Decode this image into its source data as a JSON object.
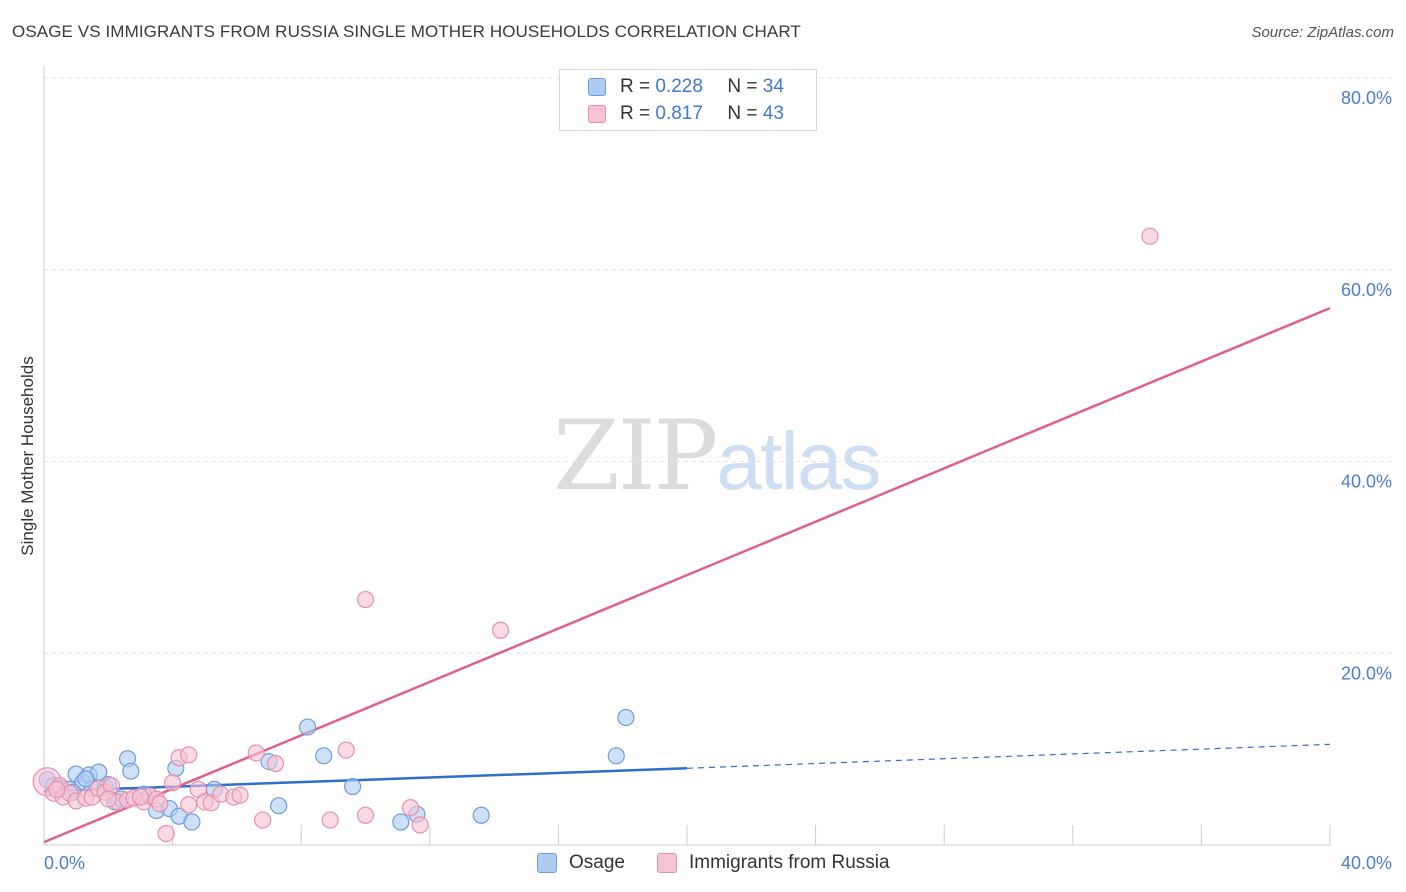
{
  "title": "OSAGE VS IMMIGRANTS FROM RUSSIA SINGLE MOTHER HOUSEHOLDS CORRELATION CHART",
  "source": "Source: ZipAtlas.com",
  "watermark": {
    "zip": "ZIP",
    "atlas": "atlas"
  },
  "legend": {
    "rows": [
      {
        "r_label": "R = ",
        "r_value": "0.228",
        "n_label": "N = ",
        "n_value": "34"
      },
      {
        "r_label": "R = ",
        "r_value": "0.817",
        "n_label": "N = ",
        "n_value": "43"
      }
    ]
  },
  "colors": {
    "osage_fill": "#aecbf2",
    "osage_stroke": "#6e9de0",
    "osage_line": "#2f6fc9",
    "russia_fill": "#f7c3d3",
    "russia_stroke": "#e98fae",
    "russia_line": "#e0608a",
    "grid": "#e4e4e4",
    "tick_text": "#4a7fd0"
  },
  "chart_data": {
    "type": "scatter",
    "title": "OSAGE VS IMMIGRANTS FROM RUSSIA SINGLE MOTHER HOUSEHOLDS CORRELATION CHART",
    "xlabel": "",
    "ylabel": "Single Mother Households",
    "xlim": [
      0,
      40
    ],
    "ylim": [
      0,
      80
    ],
    "y_ticks": [
      {
        "value": 20,
        "label": "20.0%"
      },
      {
        "value": 40,
        "label": "40.0%"
      },
      {
        "value": 60,
        "label": "60.0%"
      },
      {
        "value": 80,
        "label": "80.0%"
      }
    ],
    "x_tick_labels": [
      {
        "value": 0,
        "label": "0.0%"
      },
      {
        "value": 40,
        "label": "40.0%"
      }
    ],
    "series": [
      {
        "name": "Osage",
        "r": 0.228,
        "n": 34,
        "points": [
          [
            0.1,
            6.8
          ],
          [
            0.3,
            6.2
          ],
          [
            0.5,
            6.0
          ],
          [
            0.8,
            5.8
          ],
          [
            1.0,
            7.4
          ],
          [
            1.2,
            6.5
          ],
          [
            1.4,
            7.3
          ],
          [
            1.5,
            5.9
          ],
          [
            1.7,
            7.6
          ],
          [
            1.9,
            6.0
          ],
          [
            2.0,
            6.3
          ],
          [
            2.2,
            4.5
          ],
          [
            2.6,
            9.0
          ],
          [
            2.7,
            7.7
          ],
          [
            3.1,
            5.3
          ],
          [
            3.5,
            3.6
          ],
          [
            3.9,
            3.8
          ],
          [
            4.1,
            8.0
          ],
          [
            4.2,
            3.0
          ],
          [
            4.6,
            2.4
          ],
          [
            5.3,
            5.8
          ],
          [
            7.0,
            8.7
          ],
          [
            7.3,
            4.1
          ],
          [
            8.2,
            12.3
          ],
          [
            8.7,
            9.3
          ],
          [
            9.6,
            6.1
          ],
          [
            11.1,
            2.4
          ],
          [
            11.6,
            3.2
          ],
          [
            13.6,
            3.1
          ],
          [
            17.8,
            9.3
          ],
          [
            18.1,
            13.3
          ],
          [
            0.9,
            5.5
          ],
          [
            2.4,
            4.8
          ],
          [
            1.3,
            6.9
          ]
        ],
        "trend": {
          "x0": 0,
          "y0": 5.6,
          "x1": 20,
          "y1": 8.0,
          "dash_x1": 40,
          "dash_y1": 10.5
        }
      },
      {
        "name": "Immigrants from Russia",
        "r": 0.817,
        "n": 43,
        "points": [
          [
            0.1,
            6.6
          ],
          [
            0.3,
            5.4
          ],
          [
            0.5,
            6.2
          ],
          [
            0.6,
            5.0
          ],
          [
            0.8,
            5.4
          ],
          [
            1.0,
            4.6
          ],
          [
            1.3,
            4.9
          ],
          [
            1.5,
            5.0
          ],
          [
            1.7,
            5.9
          ],
          [
            1.9,
            5.5
          ],
          [
            2.1,
            6.2
          ],
          [
            2.3,
            4.5
          ],
          [
            2.6,
            4.7
          ],
          [
            2.8,
            4.9
          ],
          [
            3.1,
            4.5
          ],
          [
            3.3,
            5.1
          ],
          [
            3.5,
            4.8
          ],
          [
            3.6,
            4.3
          ],
          [
            3.8,
            1.2
          ],
          [
            4.0,
            6.5
          ],
          [
            4.2,
            9.1
          ],
          [
            4.5,
            9.4
          ],
          [
            4.5,
            4.2
          ],
          [
            4.8,
            5.8
          ],
          [
            5.0,
            4.5
          ],
          [
            5.2,
            4.4
          ],
          [
            5.5,
            5.3
          ],
          [
            5.9,
            5.0
          ],
          [
            6.1,
            5.2
          ],
          [
            6.6,
            9.6
          ],
          [
            6.8,
            2.6
          ],
          [
            7.2,
            8.5
          ],
          [
            8.9,
            2.6
          ],
          [
            9.4,
            9.9
          ],
          [
            10.0,
            25.6
          ],
          [
            10.0,
            3.1
          ],
          [
            11.4,
            3.9
          ],
          [
            11.7,
            2.1
          ],
          [
            14.2,
            22.4
          ],
          [
            34.4,
            63.5
          ],
          [
            2.0,
            4.8
          ],
          [
            3.0,
            5.0
          ],
          [
            0.4,
            5.8
          ]
        ],
        "trend": {
          "x0": 0,
          "y0": 0.3,
          "x1": 40,
          "y1": 56.0
        }
      }
    ]
  },
  "bottom_legend": {
    "osage_label": "Osage",
    "russia_label": "Immigrants from Russia"
  }
}
